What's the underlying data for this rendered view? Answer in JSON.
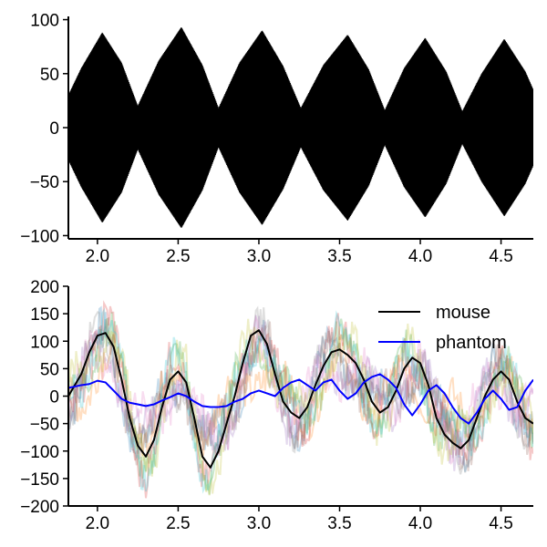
{
  "chart_data": [
    {
      "type": "line",
      "title": "",
      "xlabel": "",
      "ylabel": "",
      "xlim": [
        1.82,
        4.7
      ],
      "ylim": [
        -103,
        103
      ],
      "xticks": [
        2.0,
        2.5,
        3.0,
        3.5,
        4.0,
        4.5
      ],
      "xtick_labels": [
        "2.0",
        "2.5",
        "3.0",
        "3.5",
        "4.0",
        "4.5"
      ],
      "yticks": [
        100,
        50,
        0,
        -50,
        -100
      ],
      "ytick_labels": [
        "100",
        "50",
        "0",
        "−50",
        "−100"
      ],
      "grid": false,
      "series": [
        {
          "color": "#000000",
          "envelope_x": [
            1.82,
            1.9,
            2.03,
            2.15,
            2.25,
            2.38,
            2.52,
            2.65,
            2.75,
            2.88,
            3.02,
            3.15,
            3.26,
            3.4,
            3.55,
            3.68,
            3.78,
            3.9,
            4.03,
            4.16,
            4.26,
            4.38,
            4.52,
            4.65,
            4.7
          ],
          "envelope_upper": [
            30,
            55,
            88,
            60,
            20,
            62,
            93,
            58,
            18,
            60,
            90,
            57,
            18,
            58,
            86,
            54,
            16,
            55,
            83,
            52,
            15,
            50,
            82,
            52,
            35
          ],
          "envelope_lower": [
            -30,
            -55,
            -88,
            -60,
            -20,
            -62,
            -93,
            -58,
            -18,
            -60,
            -90,
            -57,
            -18,
            -58,
            -86,
            -54,
            -16,
            -55,
            -83,
            -52,
            -15,
            -50,
            -82,
            -52,
            -35
          ]
        }
      ]
    },
    {
      "type": "line",
      "title": "",
      "xlabel": "",
      "ylabel": "",
      "xlim": [
        1.82,
        4.7
      ],
      "ylim": [
        -200,
        200
      ],
      "xticks": [
        2.0,
        2.5,
        3.0,
        3.5,
        4.0,
        4.5
      ],
      "xtick_labels": [
        "2.0",
        "2.5",
        "3.0",
        "3.5",
        "4.0",
        "4.5"
      ],
      "yticks": [
        200,
        150,
        100,
        50,
        0,
        -50,
        -100,
        -150,
        -200
      ],
      "ytick_labels": [
        "200",
        "150",
        "100",
        "50",
        "0",
        "−50",
        "−100",
        "−150",
        "−200"
      ],
      "grid": false,
      "legend": "top-right",
      "series": [
        {
          "name": "mouse",
          "color": "#000000",
          "x": [
            1.82,
            1.9,
            1.95,
            2.0,
            2.05,
            2.1,
            2.15,
            2.2,
            2.25,
            2.3,
            2.35,
            2.4,
            2.45,
            2.5,
            2.55,
            2.6,
            2.65,
            2.7,
            2.75,
            2.8,
            2.85,
            2.9,
            2.95,
            3.0,
            3.05,
            3.1,
            3.15,
            3.2,
            3.25,
            3.3,
            3.35,
            3.4,
            3.45,
            3.5,
            3.55,
            3.6,
            3.65,
            3.7,
            3.75,
            3.8,
            3.85,
            3.9,
            3.95,
            4.0,
            4.05,
            4.1,
            4.15,
            4.2,
            4.25,
            4.3,
            4.35,
            4.4,
            4.45,
            4.5,
            4.55,
            4.6,
            4.65,
            4.7
          ],
          "y": [
            0,
            40,
            80,
            110,
            115,
            90,
            30,
            -40,
            -90,
            -110,
            -80,
            -20,
            30,
            45,
            25,
            -40,
            -110,
            -130,
            -100,
            -50,
            0,
            60,
            110,
            120,
            95,
            40,
            -10,
            -30,
            -40,
            -20,
            20,
            55,
            80,
            85,
            75,
            60,
            30,
            -10,
            -30,
            -20,
            10,
            50,
            70,
            60,
            20,
            -40,
            -70,
            -85,
            -95,
            -80,
            -40,
            0,
            30,
            45,
            30,
            -10,
            -40,
            -50
          ]
        },
        {
          "name": "phantom",
          "color": "#0000ff",
          "x": [
            1.82,
            1.9,
            1.95,
            2.0,
            2.05,
            2.1,
            2.15,
            2.2,
            2.25,
            2.3,
            2.35,
            2.4,
            2.45,
            2.5,
            2.55,
            2.6,
            2.65,
            2.7,
            2.75,
            2.8,
            2.85,
            2.9,
            2.95,
            3.0,
            3.05,
            3.1,
            3.15,
            3.2,
            3.25,
            3.3,
            3.35,
            3.4,
            3.45,
            3.5,
            3.55,
            3.6,
            3.65,
            3.7,
            3.75,
            3.8,
            3.85,
            3.9,
            3.95,
            4.0,
            4.05,
            4.1,
            4.15,
            4.2,
            4.25,
            4.3,
            4.35,
            4.4,
            4.45,
            4.5,
            4.55,
            4.6,
            4.65,
            4.7
          ],
          "y": [
            15,
            20,
            22,
            28,
            25,
            10,
            -5,
            -12,
            -15,
            -18,
            -15,
            -8,
            -2,
            5,
            0,
            -10,
            -18,
            -20,
            -20,
            -18,
            -10,
            -5,
            5,
            10,
            5,
            0,
            15,
            25,
            30,
            20,
            10,
            25,
            30,
            10,
            -5,
            5,
            25,
            35,
            40,
            30,
            15,
            -15,
            -35,
            -15,
            10,
            20,
            5,
            -20,
            -40,
            -50,
            -30,
            -5,
            10,
            -5,
            -25,
            -20,
            10,
            30
          ]
        }
      ],
      "background_traces": {
        "count": 10,
        "colors": [
          "#1f77b4",
          "#ff7f0e",
          "#2ca02c",
          "#d62728",
          "#9467bd",
          "#8c564b",
          "#e377c2",
          "#7f7f7f",
          "#bcbd22",
          "#17becf"
        ],
        "opacity": 0.25
      }
    }
  ]
}
